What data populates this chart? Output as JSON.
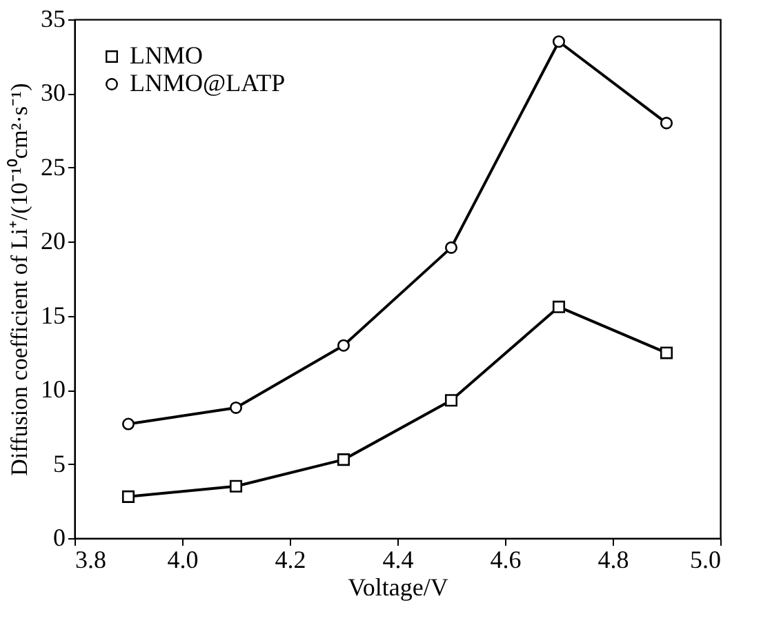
{
  "chart_data": {
    "type": "line",
    "xlabel": "Voltage/V",
    "ylabel": "Diffusion coefficient of Li⁺/(10⁻¹⁰cm²·s⁻¹)",
    "x": [
      3.9,
      4.1,
      4.3,
      4.5,
      4.7,
      4.9
    ],
    "series": [
      {
        "name": "LNMO",
        "color": "#000000",
        "marker": "square",
        "values": [
          2.8,
          3.5,
          5.3,
          9.3,
          15.6,
          12.5
        ]
      },
      {
        "name": "LNMO@LATP",
        "color": "#000000",
        "marker": "circle",
        "values": [
          7.7,
          8.8,
          13.0,
          19.6,
          33.5,
          28.0
        ]
      }
    ],
    "xlim": [
      3.8,
      5.0
    ],
    "xticks": [
      {
        "value": 3.8,
        "label": "3.8"
      },
      {
        "value": 4.0,
        "label": "4.0"
      },
      {
        "value": 4.2,
        "label": "4.2"
      },
      {
        "value": 4.4,
        "label": "4.4"
      },
      {
        "value": 4.6,
        "label": "4.6"
      },
      {
        "value": 4.8,
        "label": "4.8"
      },
      {
        "value": 5.0,
        "label": "5.0"
      }
    ],
    "ylim": [
      0,
      35
    ],
    "yticks": [
      0,
      5,
      10,
      15,
      20,
      25,
      30,
      35
    ],
    "grid": false,
    "legend": "top left",
    "line_style": "solid"
  }
}
